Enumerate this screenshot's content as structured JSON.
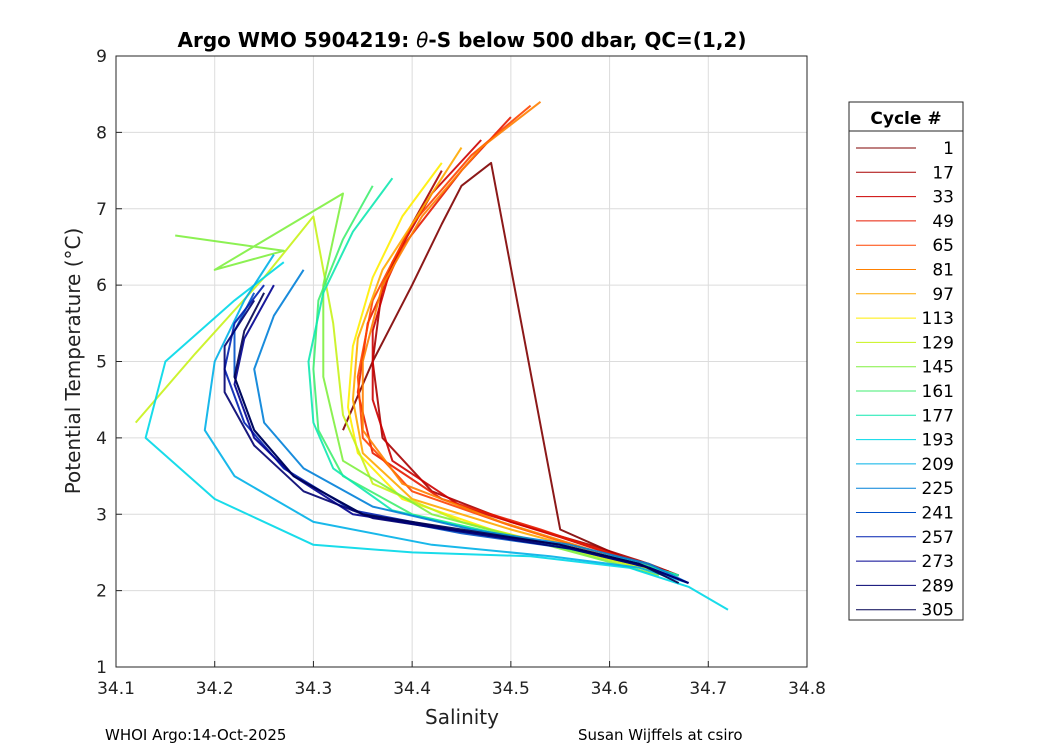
{
  "chart_data": {
    "type": "line",
    "title_prefix": "Argo WMO 5904219: ",
    "title_theta": "θ",
    "title_suffix": "-S below 500 dbar,  QC=(1,2)",
    "xlabel": "Salinity",
    "ylabel": "Potential Temperature (°C)",
    "xlim": [
      34.1,
      34.8
    ],
    "ylim": [
      1,
      9
    ],
    "x_ticks": [
      "34.1",
      "34.2",
      "34.3",
      "34.4",
      "34.5",
      "34.6",
      "34.7",
      "34.8"
    ],
    "y_ticks": [
      "1",
      "2",
      "3",
      "4",
      "5",
      "6",
      "7",
      "8",
      "9"
    ],
    "grid": true,
    "legend": {
      "title": "Cycle #",
      "placement": "outside-right",
      "entries": [
        {
          "label": "1",
          "color": "#7f0000"
        },
        {
          "label": "17",
          "color": "#a80000"
        },
        {
          "label": "33",
          "color": "#cc0000"
        },
        {
          "label": "49",
          "color": "#e61a00"
        },
        {
          "label": "65",
          "color": "#ff4400"
        },
        {
          "label": "81",
          "color": "#ff8000"
        },
        {
          "label": "97",
          "color": "#ffaa00"
        },
        {
          "label": "113",
          "color": "#ffee00"
        },
        {
          "label": "129",
          "color": "#c8f21a"
        },
        {
          "label": "145",
          "color": "#80f040"
        },
        {
          "label": "161",
          "color": "#40ee70"
        },
        {
          "label": "177",
          "color": "#10e8b0"
        },
        {
          "label": "193",
          "color": "#00d8e8"
        },
        {
          "label": "209",
          "color": "#00b0e8"
        },
        {
          "label": "225",
          "color": "#0080d8"
        },
        {
          "label": "241",
          "color": "#0050c8"
        },
        {
          "label": "257",
          "color": "#0020b0"
        },
        {
          "label": "273",
          "color": "#000090"
        },
        {
          "label": "289",
          "color": "#000070"
        },
        {
          "label": "305",
          "color": "#000050"
        }
      ]
    },
    "series": [
      {
        "name": "1",
        "color": "#7f0000",
        "x": [
          34.33,
          34.36,
          34.4,
          34.43,
          34.45,
          34.48,
          34.55,
          34.62,
          34.66
        ],
        "y": [
          4.1,
          5.0,
          6.0,
          6.8,
          7.3,
          7.6,
          2.8,
          2.4,
          2.25
        ]
      },
      {
        "name": "17",
        "color": "#a80000",
        "x": [
          34.43,
          34.4,
          34.37,
          34.36,
          34.37,
          34.42,
          34.5,
          34.58,
          34.64,
          34.67
        ],
        "y": [
          7.5,
          6.8,
          6.0,
          5.0,
          4.0,
          3.3,
          2.9,
          2.6,
          2.35,
          2.2
        ]
      },
      {
        "name": "33",
        "color": "#cc0000",
        "x": [
          34.47,
          34.42,
          34.38,
          34.36,
          34.36,
          34.38,
          34.45,
          34.55,
          34.62,
          34.67
        ],
        "y": [
          7.9,
          7.2,
          6.3,
          5.4,
          4.5,
          3.7,
          3.1,
          2.7,
          2.4,
          2.2
        ]
      },
      {
        "name": "49",
        "color": "#e61a00",
        "x": [
          34.5,
          34.45,
          34.39,
          34.355,
          34.345,
          34.36,
          34.43,
          34.53,
          34.61,
          34.67
        ],
        "y": [
          8.2,
          7.5,
          6.5,
          5.5,
          4.6,
          3.8,
          3.2,
          2.8,
          2.45,
          2.2
        ]
      },
      {
        "name": "65",
        "color": "#ff4400",
        "x": [
          34.52,
          34.46,
          34.4,
          34.36,
          34.345,
          34.35,
          34.4,
          34.5,
          34.6,
          34.66
        ],
        "y": [
          8.35,
          7.7,
          6.8,
          5.8,
          4.8,
          4.0,
          3.3,
          2.85,
          2.45,
          2.2
        ]
      },
      {
        "name": "81",
        "color": "#ff8000",
        "x": [
          34.53,
          34.47,
          34.41,
          34.37,
          34.35,
          34.35,
          34.39,
          34.49,
          34.59,
          34.66
        ],
        "y": [
          8.4,
          7.8,
          6.9,
          6.0,
          5.0,
          4.1,
          3.4,
          2.9,
          2.5,
          2.2
        ]
      },
      {
        "name": "97",
        "color": "#ffaa00",
        "x": [
          34.45,
          34.41,
          34.37,
          34.345,
          34.34,
          34.35,
          34.4,
          34.5,
          34.6,
          34.66
        ],
        "y": [
          7.8,
          7.0,
          6.2,
          5.3,
          4.5,
          3.8,
          3.2,
          2.8,
          2.45,
          2.2
        ]
      },
      {
        "name": "113",
        "color": "#ffee00",
        "x": [
          34.43,
          34.39,
          34.36,
          34.34,
          34.335,
          34.345,
          34.39,
          34.48,
          34.59,
          34.66
        ],
        "y": [
          7.6,
          6.9,
          6.1,
          5.2,
          4.4,
          3.8,
          3.2,
          2.8,
          2.45,
          2.2
        ]
      },
      {
        "name": "129",
        "color": "#c8f21a",
        "x": [
          34.12,
          34.18,
          34.25,
          34.3,
          34.32,
          34.33,
          34.36,
          34.45,
          34.57,
          34.66
        ],
        "y": [
          4.2,
          5.1,
          6.1,
          6.9,
          5.5,
          4.3,
          3.4,
          2.9,
          2.5,
          2.2
        ]
      },
      {
        "name": "145",
        "color": "#80f040",
        "x": [
          34.16,
          34.27,
          34.2,
          34.33,
          34.31,
          34.31,
          34.33,
          34.42,
          34.55,
          34.65
        ],
        "y": [
          6.65,
          6.45,
          6.2,
          7.2,
          6.0,
          4.8,
          3.7,
          3.0,
          2.55,
          2.2
        ]
      },
      {
        "name": "161",
        "color": "#40ee70",
        "x": [
          34.36,
          34.33,
          34.305,
          34.3,
          34.305,
          34.33,
          34.4,
          34.52,
          34.63,
          34.67
        ],
        "y": [
          7.3,
          6.6,
          5.8,
          4.9,
          4.1,
          3.5,
          3.0,
          2.65,
          2.35,
          2.2
        ]
      },
      {
        "name": "177",
        "color": "#10e8b0",
        "x": [
          34.38,
          34.34,
          34.31,
          34.295,
          34.3,
          34.32,
          34.38,
          34.5,
          34.62,
          34.67
        ],
        "y": [
          7.4,
          6.7,
          5.9,
          5.0,
          4.2,
          3.6,
          3.05,
          2.7,
          2.4,
          2.2
        ]
      },
      {
        "name": "193",
        "color": "#00d8e8",
        "x": [
          34.27,
          34.22,
          34.15,
          34.13,
          34.2,
          34.3,
          34.4,
          34.52,
          34.62,
          34.68,
          34.72
        ],
        "y": [
          6.3,
          5.8,
          5.0,
          4.0,
          3.2,
          2.6,
          2.5,
          2.45,
          2.3,
          2.05,
          1.75
        ]
      },
      {
        "name": "209",
        "color": "#00b0e8",
        "x": [
          34.26,
          34.23,
          34.2,
          34.19,
          34.22,
          34.3,
          34.42,
          34.54,
          34.63,
          34.68
        ],
        "y": [
          6.4,
          5.8,
          5.0,
          4.1,
          3.5,
          2.9,
          2.6,
          2.45,
          2.3,
          2.1
        ]
      },
      {
        "name": "225",
        "color": "#0080d8",
        "x": [
          34.29,
          34.26,
          34.24,
          34.25,
          34.29,
          34.36,
          34.46,
          34.56,
          34.64,
          34.68
        ],
        "y": [
          6.2,
          5.6,
          4.9,
          4.2,
          3.6,
          3.1,
          2.8,
          2.6,
          2.35,
          2.1
        ]
      },
      {
        "name": "241",
        "color": "#0050c8",
        "x": [
          34.24,
          34.22,
          34.22,
          34.24,
          34.28,
          34.35,
          34.45,
          34.56,
          34.64,
          34.68
        ],
        "y": [
          5.9,
          5.4,
          4.8,
          4.1,
          3.5,
          3.0,
          2.75,
          2.55,
          2.3,
          2.1
        ]
      },
      {
        "name": "257",
        "color": "#0020b0",
        "x": [
          34.25,
          34.22,
          34.21,
          34.23,
          34.27,
          34.34,
          34.44,
          34.55,
          34.63,
          34.68
        ],
        "y": [
          6.0,
          5.5,
          4.9,
          4.2,
          3.6,
          3.05,
          2.8,
          2.6,
          2.35,
          2.1
        ]
      },
      {
        "name": "273",
        "color": "#000090",
        "x": [
          34.26,
          34.23,
          34.22,
          34.24,
          34.28,
          34.34,
          34.44,
          34.55,
          34.63,
          34.68
        ],
        "y": [
          6.0,
          5.3,
          4.7,
          4.0,
          3.5,
          3.0,
          2.8,
          2.6,
          2.35,
          2.1
        ]
      },
      {
        "name": "289",
        "color": "#000070",
        "x": [
          34.24,
          34.21,
          34.21,
          34.24,
          34.29,
          34.36,
          34.46,
          34.56,
          34.64,
          34.68
        ],
        "y": [
          5.8,
          5.2,
          4.6,
          3.9,
          3.3,
          2.95,
          2.75,
          2.55,
          2.3,
          2.1
        ]
      },
      {
        "name": "305",
        "color": "#000050",
        "x": [
          34.25,
          34.23,
          34.22,
          34.24,
          34.28,
          34.35,
          34.45,
          34.55,
          34.63,
          34.67
        ],
        "y": [
          5.9,
          5.4,
          4.8,
          4.1,
          3.5,
          3.0,
          2.8,
          2.6,
          2.35,
          2.1
        ]
      }
    ]
  },
  "footer": {
    "left": "WHOI Argo:14-Oct-2025",
    "right": "Susan Wijffels at csiro"
  }
}
